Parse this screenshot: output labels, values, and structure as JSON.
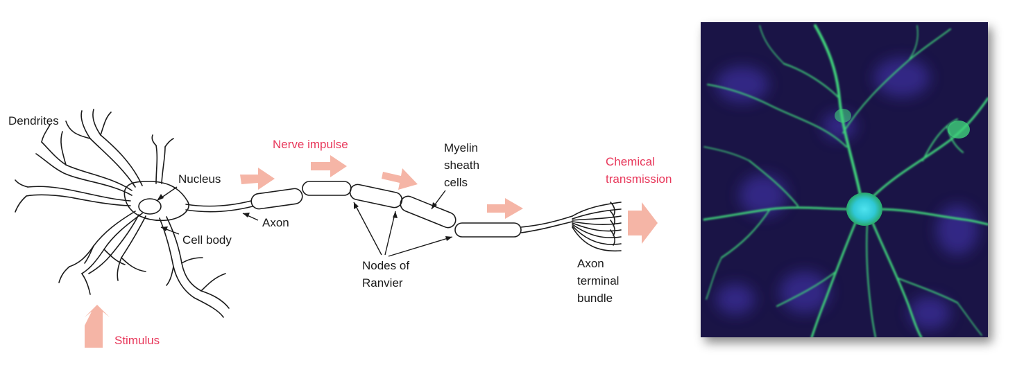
{
  "diagram": {
    "labels": {
      "dendrites": "Dendrites",
      "nucleus": "Nucleus",
      "axon": "Axon",
      "cell_body": "Cell body",
      "nerve_impulse": "Nerve impulse",
      "myelin_1": "Myelin",
      "myelin_2": "sheath",
      "myelin_3": "cells",
      "nodes_1": "Nodes of",
      "nodes_2": "Ranvier",
      "chemical_1": "Chemical",
      "chemical_2": "transmission",
      "terminal_1": "Axon",
      "terminal_2": "terminal",
      "terminal_3": "bundle",
      "stimulus": "Stimulus"
    },
    "colors": {
      "line": "#1a1a1a",
      "highlight_text": "#e8375a",
      "arrow_fill": "#f5b5a6"
    }
  },
  "photo": {
    "subject": "fluorescence-micrograph-neuron",
    "colors": {
      "background": "#1a1446",
      "neuron": "#3fd27a",
      "soma": "#2fc8d6",
      "nuclei": "#3a2f9a"
    }
  }
}
